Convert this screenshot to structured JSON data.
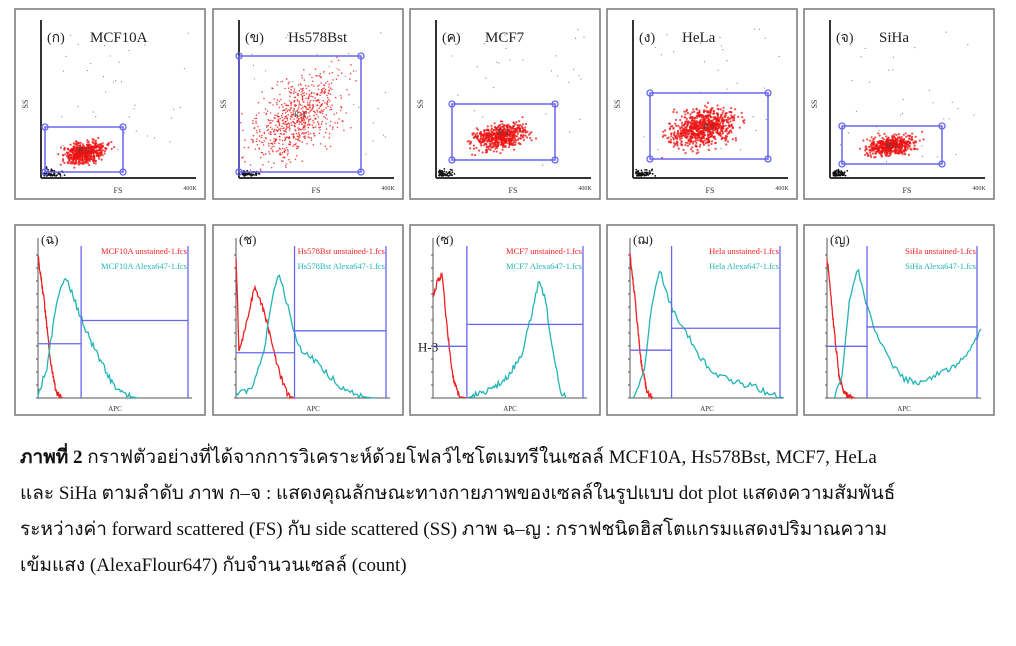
{
  "figure": {
    "caption_label": "ภาพที่ 2",
    "caption_lines": [
      " กราฟตัวอย่างที่ได้จากการวิเคราะห์ด้วยโฟลว์ไซโตเมทรีในเซลล์  MCF10A, Hs578Bst, MCF7, HeLa",
      "และ SiHa ตามลำดับ  ภาพ ก–จ : แสดงคุณลักษณะทางกายภาพของเซลล์ในรูปแบบ  dot plot แสดงความสัมพันธ์",
      "ระหว่างค่า forward scattered (FS) กับ side scattered (SS)  ภาพ ฉ–ญ : กราฟชนิดฮิสโตแกรมแสดงปริมาณความ",
      "เข้มแสง (AlexaFlour647)  กับจำนวนเซลล์ (count)"
    ]
  },
  "colors": {
    "gate": "#6666ee",
    "unstained": "#ee2222",
    "stained": "#22b5b5",
    "dots": "#ee1111",
    "debris": "#111111"
  },
  "chart_data": [
    {
      "type": "scatter",
      "panel": "(ก)",
      "title": "MCF10A",
      "xlabel": "FS",
      "ylabel": "SS",
      "xmax_label": "400K",
      "gate": "R-1",
      "cloud": "compact low"
    },
    {
      "type": "scatter",
      "panel": "(ข)",
      "title": "Hs578Bst",
      "xlabel": "FS",
      "ylabel": "SS",
      "xmax_label": "400K",
      "gate": "R-1",
      "cloud": "broad"
    },
    {
      "type": "scatter",
      "panel": "(ค)",
      "title": "MCF7",
      "xlabel": "FS",
      "ylabel": "SS",
      "xmax_label": "400K",
      "gate": "R-1",
      "cloud": "compact mid"
    },
    {
      "type": "scatter",
      "panel": "(ง)",
      "title": "HeLa",
      "xlabel": "FS",
      "ylabel": "SS",
      "xmax_label": "400K",
      "gate": "R-1",
      "cloud": "dense mid"
    },
    {
      "type": "scatter",
      "panel": "(จ)",
      "title": "SiHa",
      "xlabel": "FS",
      "ylabel": "SS",
      "xmax_label": "400K",
      "gate": "R-1",
      "cloud": "compact mid"
    },
    {
      "type": "line",
      "panel": "(ฉ)",
      "xlabel": "APC",
      "legend": [
        "MCF10A unstained-1.fcs",
        "MCF10A Alexa647-1.fcs"
      ],
      "unstained": [
        [
          0,
          1.1
        ],
        [
          0.04,
          0.75
        ],
        [
          0.08,
          0.3
        ],
        [
          0.12,
          0.03
        ],
        [
          0.16,
          0
        ]
      ],
      "stained": [
        [
          0,
          0.02
        ],
        [
          0.06,
          0.25
        ],
        [
          0.12,
          0.75
        ],
        [
          0.18,
          0.95
        ],
        [
          0.21,
          0.85
        ],
        [
          0.26,
          0.68
        ],
        [
          0.32,
          0.5
        ],
        [
          0.4,
          0.3
        ],
        [
          0.48,
          0.12
        ],
        [
          0.56,
          0.02
        ],
        [
          0.65,
          0
        ]
      ],
      "gate_x": 0.28,
      "left_marker": 0.42,
      "right_marker": 0.6
    },
    {
      "type": "line",
      "panel": "(ช)",
      "xlabel": "APC",
      "legend": [
        "Hs578Bst unstained-1.fcs",
        "Hs578Bst Alexa647-1.fcs"
      ],
      "unstained": [
        [
          0,
          1.1
        ],
        [
          0.02,
          0.35
        ],
        [
          0.07,
          0.6
        ],
        [
          0.12,
          0.85
        ],
        [
          0.16,
          0.75
        ],
        [
          0.22,
          0.5
        ],
        [
          0.28,
          0.2
        ],
        [
          0.34,
          0.02
        ],
        [
          0.38,
          0
        ]
      ],
      "stained": [
        [
          0,
          0.02
        ],
        [
          0.1,
          0.08
        ],
        [
          0.18,
          0.35
        ],
        [
          0.24,
          0.8
        ],
        [
          0.28,
          0.95
        ],
        [
          0.34,
          0.7
        ],
        [
          0.4,
          0.4
        ],
        [
          0.5,
          0.3
        ],
        [
          0.6,
          0.18
        ],
        [
          0.7,
          0.06
        ],
        [
          0.82,
          0.01
        ],
        [
          0.9,
          0
        ]
      ],
      "gate_x": 0.38,
      "left_marker": 0.35,
      "right_marker": 0.52
    },
    {
      "type": "line",
      "panel": "(ซ)",
      "xlabel": "APC",
      "legend": [
        "MCF7 unstained-1.fcs",
        "MCF7 Alexa647-1.fcs"
      ],
      "unstained": [
        [
          0,
          0.8
        ],
        [
          0.03,
          0.9
        ],
        [
          0.06,
          0.95
        ],
        [
          0.09,
          0.55
        ],
        [
          0.13,
          0.15
        ],
        [
          0.17,
          0.01
        ],
        [
          0.22,
          0
        ]
      ],
      "stained": [
        [
          0.22,
          0
        ],
        [
          0.35,
          0.05
        ],
        [
          0.48,
          0.15
        ],
        [
          0.58,
          0.35
        ],
        [
          0.64,
          0.65
        ],
        [
          0.69,
          0.92
        ],
        [
          0.73,
          0.75
        ],
        [
          0.78,
          0.35
        ],
        [
          0.83,
          0.05
        ],
        [
          0.87,
          0
        ]
      ],
      "gate_x": 0.22,
      "left_marker": 0.4,
      "right_marker": 0.57,
      "marker_label": "H-3"
    },
    {
      "type": "line",
      "panel": "(ฌ)",
      "xlabel": "APC",
      "legend": [
        "Hela unstained-1.fcs",
        "Hela Alexa647-1.fcs"
      ],
      "unstained": [
        [
          0,
          1.1
        ],
        [
          0.03,
          0.8
        ],
        [
          0.07,
          0.3
        ],
        [
          0.11,
          0.04
        ],
        [
          0.15,
          0
        ]
      ],
      "stained": [
        [
          0.02,
          0
        ],
        [
          0.09,
          0.2
        ],
        [
          0.14,
          0.7
        ],
        [
          0.19,
          1.0
        ],
        [
          0.24,
          0.8
        ],
        [
          0.3,
          0.62
        ],
        [
          0.38,
          0.48
        ],
        [
          0.46,
          0.3
        ],
        [
          0.56,
          0.18
        ],
        [
          0.7,
          0.12
        ],
        [
          0.8,
          0.09
        ],
        [
          0.9,
          0.03
        ],
        [
          1.0,
          0
        ]
      ],
      "gate_x": 0.27,
      "left_marker": 0.37,
      "right_marker": 0.54
    },
    {
      "type": "line",
      "panel": "(ญ)",
      "xlabel": "APC",
      "legend": [
        "SiHa unstained-1.fcs",
        "SiHa Alexa647-1.fcs"
      ],
      "unstained": [
        [
          0,
          1.1
        ],
        [
          0.04,
          0.6
        ],
        [
          0.08,
          0.15
        ],
        [
          0.12,
          0.03
        ],
        [
          0.18,
          0
        ]
      ],
      "stained": [
        [
          0.05,
          0
        ],
        [
          0.1,
          0.2
        ],
        [
          0.15,
          0.8
        ],
        [
          0.2,
          1.0
        ],
        [
          0.25,
          0.75
        ],
        [
          0.3,
          0.55
        ],
        [
          0.4,
          0.3
        ],
        [
          0.5,
          0.15
        ],
        [
          0.6,
          0.12
        ],
        [
          0.7,
          0.18
        ],
        [
          0.8,
          0.22
        ],
        [
          0.9,
          0.32
        ],
        [
          1.0,
          0.52
        ]
      ],
      "gate_x": 0.26,
      "left_marker": 0.4,
      "right_marker": 0.55
    }
  ]
}
